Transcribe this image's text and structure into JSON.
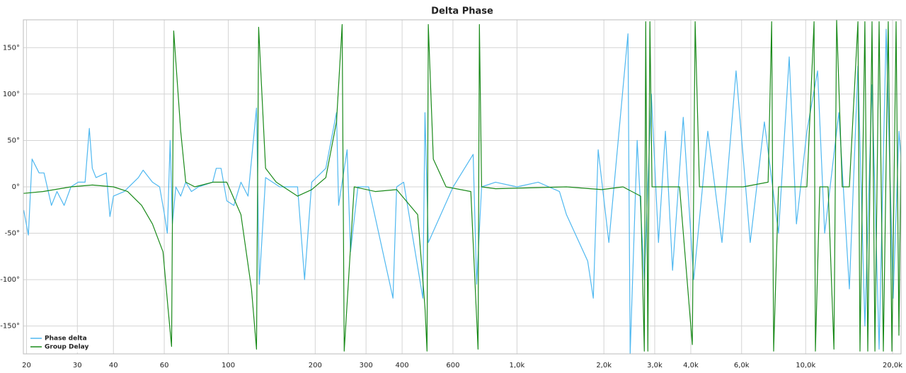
{
  "chart_data": {
    "type": "line",
    "title": "Delta Phase",
    "xscale": "log",
    "grid": true,
    "legend": "lower left",
    "xlim": [
      19.5,
      21400
    ],
    "ylim": [
      -180,
      180
    ],
    "xticks": [
      20,
      30,
      40,
      60,
      100,
      200,
      300,
      400,
      600,
      {
        "value": 1000,
        "label": "1,0k"
      },
      {
        "value": 2000,
        "label": "2,0k"
      },
      {
        "value": 3000,
        "label": "3,0k"
      },
      {
        "value": 4000,
        "label": "4,0k"
      },
      {
        "value": 6000,
        "label": "6,0k"
      },
      {
        "value": 10000,
        "label": "10,0k"
      },
      {
        "value": 20000,
        "label": "20,0k"
      }
    ],
    "yticks": [
      {
        "value": 150,
        "label": "150°"
      },
      {
        "value": 100,
        "label": "100°"
      },
      {
        "value": 50,
        "label": "50°"
      },
      {
        "value": 0,
        "label": "0°"
      },
      {
        "value": -50,
        "label": "-50°"
      },
      {
        "value": -100,
        "label": "-100°"
      },
      {
        "value": -150,
        "label": "-150°"
      }
    ],
    "series": [
      {
        "name": "Phase delta",
        "color": "#4fb8f0",
        "x": [
          19.55,
          20.3,
          20.9,
          22.1,
          23.0,
          24.4,
          25.5,
          27.0,
          28.5,
          30.2,
          31.9,
          33.0,
          33.8,
          34.8,
          37.8,
          38.9,
          40.0,
          43.6,
          48.8,
          50.7,
          54.6,
          57.8,
          60.1,
          61.5,
          62.9,
          64.0,
          65.8,
          68.4,
          71.2,
          74.5,
          78.8,
          88.3,
          90.8,
          94.4,
          98.8,
          104.5,
          110.6,
          117,
          125.2,
          128,
          134.6,
          150.7,
          173.7,
          183.7,
          194.5,
          217.7,
          237,
          241,
          258,
          265,
          281,
          306,
          372,
          383,
          405,
          472,
          480,
          493,
          601,
          705,
          725,
          754,
          843,
          1000,
          1184,
          1403,
          1484,
          1758,
          1838,
          1911,
          2081,
          2424,
          2466,
          2608,
          2761,
          2920,
          3091,
          3268,
          3458,
          3766,
          4096,
          4583,
          5130,
          5741,
          6427,
          7194,
          8053,
          8770,
          9289,
          10100,
          11000,
          11640,
          13030,
          14170,
          15170,
          16040,
          16980,
          17960,
          19010,
          20100,
          21040,
          21400
        ],
        "values": [
          -25,
          -52,
          30,
          15,
          15,
          -20,
          -5,
          -20,
          0,
          5,
          5,
          63,
          20,
          10,
          15,
          -32,
          -10,
          -5,
          10,
          18,
          5,
          0,
          -30,
          -50,
          50,
          -40,
          0,
          -10,
          5,
          -5,
          0,
          5,
          20,
          20,
          -15,
          -20,
          5,
          -10,
          85,
          -105,
          10,
          0,
          0,
          -100,
          5,
          20,
          80,
          -20,
          40,
          -70,
          0,
          0,
          -120,
          0,
          5,
          -120,
          80,
          -60,
          0,
          35,
          -105,
          0,
          5,
          0,
          5,
          -5,
          -30,
          -80,
          -120,
          40,
          -60,
          165,
          -180,
          50,
          -100,
          100,
          -60,
          60,
          -90,
          75,
          -100,
          60,
          -60,
          125,
          -60,
          70,
          -50,
          140,
          -40,
          60,
          125,
          -50,
          80,
          -110,
          130,
          -150,
          110,
          -175,
          170,
          -120,
          60,
          30
        ]
      },
      {
        "name": "Group Delay",
        "color": "#1a8a1a",
        "x": [
          19.55,
          22.8,
          28.5,
          33.8,
          40.0,
          44.8,
          50.1,
          54.6,
          59.4,
          61.8,
          63.6,
          64.7,
          68.4,
          71.2,
          76.6,
          88.3,
          98.8,
          110.6,
          120.3,
          125.2,
          127.4,
          134.6,
          146.6,
          173.7,
          194.5,
          217.7,
          237,
          248,
          252,
          273,
          323,
          383,
          453,
          480,
          488,
          493,
          513,
          568,
          692,
          733,
          741,
          754,
          843,
          1484,
          1968,
          2330,
          2681,
          2761,
          2793,
          2840,
          2887,
          2936,
          3657,
          4048,
          4142,
          4286,
          6081,
          7413,
          7623,
          7747,
          8053,
          10100,
          10690,
          10810,
          11190,
          11960,
          12530,
          12800,
          13390,
          14170,
          15170,
          15420,
          16040,
          16410,
          16980,
          17380,
          17960,
          18580,
          19320,
          19900,
          20570,
          21040,
          21400
        ],
        "values": [
          -7,
          -5,
          0,
          2,
          0,
          -5,
          -20,
          -40,
          -70,
          -130,
          -172,
          168,
          60,
          5,
          0,
          5,
          5,
          -30,
          -110,
          -175,
          172,
          20,
          5,
          -10,
          -3,
          10,
          70,
          175,
          -177,
          0,
          -5,
          -3,
          -30,
          -130,
          -177,
          175,
          30,
          0,
          -5,
          -175,
          175,
          0,
          -2,
          0,
          -3,
          0,
          -10,
          -177,
          178,
          -177,
          178,
          0,
          0,
          -170,
          178,
          0,
          0,
          5,
          178,
          -177,
          0,
          0,
          178,
          -177,
          0,
          0,
          -175,
          180,
          0,
          0,
          178,
          -177,
          178,
          -177,
          178,
          -177,
          178,
          -177,
          178,
          -177,
          178,
          -160,
          50
        ]
      }
    ]
  }
}
